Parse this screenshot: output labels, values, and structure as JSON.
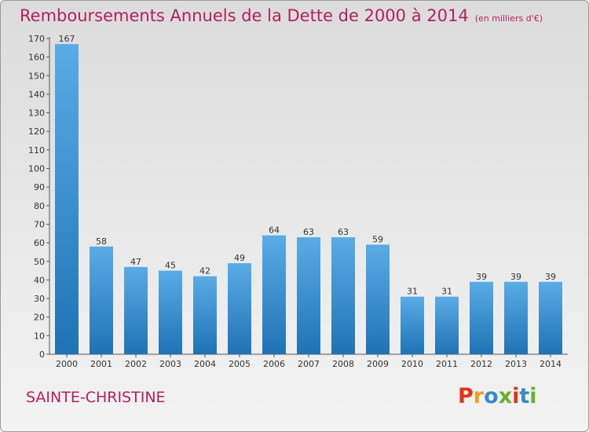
{
  "header": {
    "title": "Remboursements Annuels de la Dette de 2000 à 2014",
    "unit": "(en milliers d'€)"
  },
  "footer": {
    "commune": "SAINTE-CHRISTINE",
    "logo_text": "Proxiti"
  },
  "colors": {
    "accent": "#b4205a",
    "bar_light": "#5aace6",
    "bar_dark": "#1f73b5",
    "logo_letters": [
      "#e0331c",
      "#f0a019",
      "#3a8ac8",
      "#6aaf2c",
      "#e0331c",
      "#3a8ac8",
      "#6aaf2c"
    ]
  },
  "chart_data": {
    "type": "bar",
    "title": "Remboursements Annuels de la Dette de 2000 à 2014",
    "xlabel": "",
    "ylabel": "",
    "ylim": [
      0,
      170
    ],
    "yticks": [
      0,
      10,
      20,
      30,
      40,
      50,
      60,
      70,
      80,
      90,
      100,
      110,
      120,
      130,
      140,
      150,
      160,
      170
    ],
    "grid": false,
    "categories": [
      "2000",
      "2001",
      "2002",
      "2003",
      "2004",
      "2005",
      "2006",
      "2007",
      "2008",
      "2009",
      "2010",
      "2011",
      "2012",
      "2013",
      "2014"
    ],
    "values": [
      167,
      58,
      47,
      45,
      42,
      49,
      64,
      63,
      63,
      59,
      31,
      31,
      39,
      39,
      39
    ]
  }
}
